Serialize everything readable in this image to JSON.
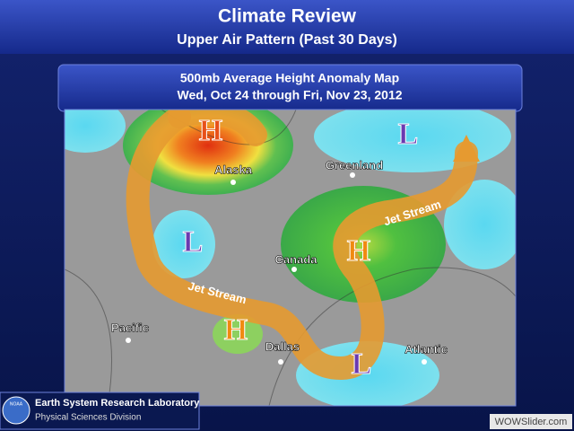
{
  "header": {
    "title": "Climate Review",
    "subtitle": "Upper Air Pattern (Past 30 Days)"
  },
  "map": {
    "title": "500mb Average Height Anomaly Map",
    "date_range": "Wed, Oct 24 through Fri, Nov 23, 2012",
    "pressure_labels": [
      "H",
      "L",
      "L",
      "H",
      "H",
      "L"
    ],
    "places": [
      "Alaska",
      "Greenland",
      "Canada",
      "Pacific",
      "Dallas",
      "Atlantic"
    ],
    "jet_stream_labels": [
      "Jet Stream",
      "Jet Stream"
    ]
  },
  "footer": {
    "logo": "NOAA",
    "lab": "Earth System Research Laboratory",
    "division": "Physical Sciences Division"
  },
  "watermark": "WOWSlider.com"
}
